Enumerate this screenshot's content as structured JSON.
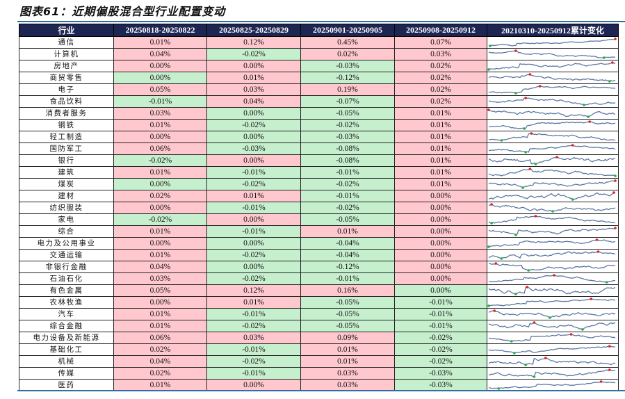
{
  "title": "图表61：近期偏股混合型行业配置变动",
  "colors": {
    "header_bg": "#1d2552",
    "positive": "#ffc7ce",
    "negative": "#c6efce",
    "line": "#5b78a3",
    "max_marker": "#e02020",
    "min_marker": "#20b040"
  },
  "chart_data": {
    "type": "table",
    "columns": [
      "行业",
      "20250818-20250822",
      "20250825-20250829",
      "20250901-20250905",
      "20250908-20250912",
      "20210310-20250912累计变化"
    ],
    "rows": [
      {
        "name": "通信",
        "values": [
          "0.01%",
          "0.12%",
          "0.45%",
          "0.07%"
        ],
        "fill": [
          "r",
          "r",
          "r",
          "r"
        ]
      },
      {
        "name": "计算机",
        "values": [
          "0.04%",
          "-0.02%",
          "0.02%",
          "0.03%"
        ],
        "fill": [
          "r",
          "g",
          "r",
          "r"
        ]
      },
      {
        "name": "房地产",
        "values": [
          "0.00%",
          "0.00%",
          "-0.03%",
          "0.02%"
        ],
        "fill": [
          "r",
          "r",
          "g",
          "r"
        ]
      },
      {
        "name": "商贸零售",
        "values": [
          "0.00%",
          "0.01%",
          "-0.12%",
          "0.02%"
        ],
        "fill": [
          "g",
          "r",
          "g",
          "r"
        ]
      },
      {
        "name": "电子",
        "values": [
          "0.05%",
          "0.03%",
          "0.19%",
          "0.02%"
        ],
        "fill": [
          "r",
          "r",
          "r",
          "r"
        ]
      },
      {
        "name": "食品饮料",
        "values": [
          "-0.01%",
          "0.04%",
          "-0.07%",
          "0.02%"
        ],
        "fill": [
          "g",
          "r",
          "g",
          "r"
        ]
      },
      {
        "name": "消费者服务",
        "values": [
          "0.03%",
          "0.00%",
          "-0.05%",
          "0.01%"
        ],
        "fill": [
          "r",
          "g",
          "g",
          "r"
        ]
      },
      {
        "name": "钢铁",
        "values": [
          "0.01%",
          "-0.02%",
          "-0.02%",
          "0.01%"
        ],
        "fill": [
          "r",
          "g",
          "g",
          "r"
        ]
      },
      {
        "name": "轻工制造",
        "values": [
          "0.00%",
          "0.00%",
          "-0.03%",
          "0.01%"
        ],
        "fill": [
          "r",
          "g",
          "g",
          "r"
        ]
      },
      {
        "name": "国防军工",
        "values": [
          "0.06%",
          "-0.03%",
          "-0.08%",
          "0.01%"
        ],
        "fill": [
          "r",
          "g",
          "g",
          "r"
        ]
      },
      {
        "name": "银行",
        "values": [
          "-0.02%",
          "0.00%",
          "-0.08%",
          "0.01%"
        ],
        "fill": [
          "g",
          "r",
          "g",
          "r"
        ]
      },
      {
        "name": "建筑",
        "values": [
          "0.01%",
          "-0.01%",
          "-0.01%",
          "0.01%"
        ],
        "fill": [
          "r",
          "g",
          "g",
          "r"
        ]
      },
      {
        "name": "煤炭",
        "values": [
          "0.00%",
          "-0.02%",
          "-0.02%",
          "0.01%"
        ],
        "fill": [
          "g",
          "g",
          "g",
          "r"
        ]
      },
      {
        "name": "建材",
        "values": [
          "0.02%",
          "0.01%",
          "-0.01%",
          "0.00%"
        ],
        "fill": [
          "r",
          "r",
          "g",
          "r"
        ]
      },
      {
        "name": "纺织服装",
        "values": [
          "0.00%",
          "-0.01%",
          "-0.02%",
          "0.00%"
        ],
        "fill": [
          "r",
          "g",
          "g",
          "r"
        ]
      },
      {
        "name": "家电",
        "values": [
          "-0.02%",
          "0.00%",
          "-0.05%",
          "0.00%"
        ],
        "fill": [
          "g",
          "r",
          "g",
          "r"
        ]
      },
      {
        "name": "综合",
        "values": [
          "0.01%",
          "-0.01%",
          "0.01%",
          "0.00%"
        ],
        "fill": [
          "r",
          "g",
          "r",
          "r"
        ]
      },
      {
        "name": "电力及公用事业",
        "values": [
          "0.00%",
          "0.00%",
          "-0.04%",
          "0.00%"
        ],
        "fill": [
          "r",
          "g",
          "g",
          "r"
        ]
      },
      {
        "name": "交通运输",
        "values": [
          "0.01%",
          "-0.02%",
          "-0.04%",
          "0.00%"
        ],
        "fill": [
          "r",
          "g",
          "g",
          "r"
        ]
      },
      {
        "name": "非银行金融",
        "values": [
          "0.04%",
          "0.00%",
          "-0.12%",
          "0.00%"
        ],
        "fill": [
          "r",
          "g",
          "g",
          "r"
        ]
      },
      {
        "name": "石油石化",
        "values": [
          "0.03%",
          "-0.02%",
          "-0.01%",
          "0.00%"
        ],
        "fill": [
          "r",
          "g",
          "g",
          "r"
        ]
      },
      {
        "name": "有色金属",
        "values": [
          "0.05%",
          "0.12%",
          "0.16%",
          "0.00%"
        ],
        "fill": [
          "r",
          "r",
          "r",
          "g"
        ]
      },
      {
        "name": "农林牧渔",
        "values": [
          "0.00%",
          "0.01%",
          "-0.05%",
          "-0.01%"
        ],
        "fill": [
          "r",
          "r",
          "g",
          "g"
        ]
      },
      {
        "name": "汽车",
        "values": [
          "0.01%",
          "-0.01%",
          "-0.05%",
          "-0.01%"
        ],
        "fill": [
          "r",
          "g",
          "g",
          "g"
        ]
      },
      {
        "name": "综合金融",
        "values": [
          "0.01%",
          "-0.02%",
          "-0.05%",
          "-0.01%"
        ],
        "fill": [
          "r",
          "g",
          "g",
          "g"
        ]
      },
      {
        "name": "电力设备及新能源",
        "values": [
          "0.06%",
          "0.03%",
          "0.09%",
          "-0.02%"
        ],
        "fill": [
          "r",
          "r",
          "r",
          "g"
        ]
      },
      {
        "name": "基础化工",
        "values": [
          "0.02%",
          "-0.01%",
          "0.01%",
          "-0.02%"
        ],
        "fill": [
          "r",
          "g",
          "r",
          "g"
        ]
      },
      {
        "name": "机械",
        "values": [
          "0.04%",
          "-0.02%",
          "0.01%",
          "-0.02%"
        ],
        "fill": [
          "r",
          "g",
          "r",
          "g"
        ]
      },
      {
        "name": "传媒",
        "values": [
          "0.02%",
          "-0.01%",
          "0.03%",
          "-0.03%"
        ],
        "fill": [
          "r",
          "g",
          "r",
          "g"
        ]
      },
      {
        "name": "医药",
        "values": [
          "0.01%",
          "0.00%",
          "0.03%",
          "-0.03%"
        ],
        "fill": [
          "r",
          "r",
          "r",
          "g"
        ]
      }
    ]
  }
}
